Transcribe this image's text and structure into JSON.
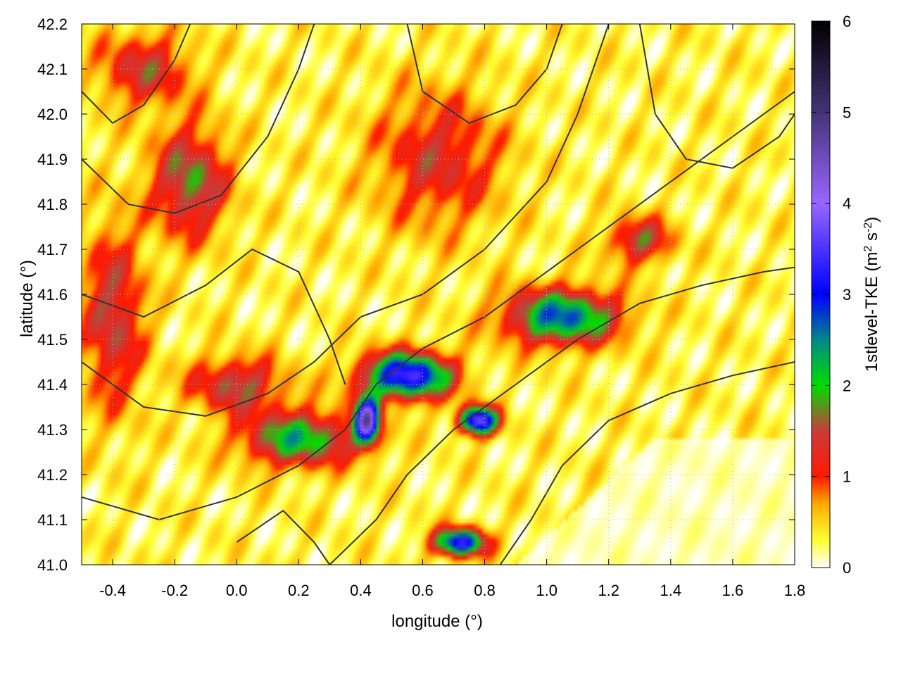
{
  "chart_data": {
    "type": "heatmap",
    "title": "",
    "xlabel": "longitude (°)",
    "ylabel": "latitude (°)",
    "colorbar_label_prefix": "1stlevel-TKE (m",
    "colorbar_label_sup1": "2",
    "colorbar_label_mid": " s",
    "colorbar_label_sup2": "-2",
    "colorbar_label_suffix": ")",
    "xlim": [
      -0.5,
      1.8
    ],
    "ylim": [
      41.0,
      42.2
    ],
    "x_ticks": [
      -0.4,
      -0.2,
      0.0,
      0.2,
      0.4,
      0.6,
      0.8,
      1.0,
      1.2,
      1.4,
      1.6,
      1.8
    ],
    "x_tick_labels": [
      "-0.4",
      "-0.2",
      "0.0",
      "0.2",
      "0.4",
      "0.6",
      "0.8",
      "1.0",
      "1.2",
      "1.4",
      "1.6",
      "1.8"
    ],
    "y_ticks": [
      41.0,
      41.1,
      41.2,
      41.3,
      41.4,
      41.5,
      41.6,
      41.7,
      41.8,
      41.9,
      42.0,
      42.1,
      42.2
    ],
    "y_tick_labels": [
      "41.0",
      "41.1",
      "41.2",
      "41.3",
      "41.4",
      "41.5",
      "41.6",
      "41.7",
      "41.8",
      "41.9",
      "42.0",
      "42.1",
      "42.2"
    ],
    "colorbar": {
      "range": [
        0,
        6
      ],
      "ticks": [
        0,
        1,
        2,
        3,
        4,
        5,
        6
      ],
      "tick_labels": [
        "0",
        "1",
        "2",
        "3",
        "4",
        "5",
        "6"
      ],
      "stops": [
        {
          "value": 0.0,
          "color": "#ffffff"
        },
        {
          "value": 0.3,
          "color": "#ffff33"
        },
        {
          "value": 0.7,
          "color": "#ffaa00"
        },
        {
          "value": 1.0,
          "color": "#ff1a00"
        },
        {
          "value": 1.5,
          "color": "#c83c3c"
        },
        {
          "value": 2.0,
          "color": "#00dd00"
        },
        {
          "value": 2.5,
          "color": "#008888"
        },
        {
          "value": 3.0,
          "color": "#0000ff"
        },
        {
          "value": 4.0,
          "color": "#9966ff"
        },
        {
          "value": 5.0,
          "color": "#443377"
        },
        {
          "value": 6.0,
          "color": "#000000"
        }
      ]
    },
    "grid": true,
    "approx_field_features": [
      {
        "lon": 0.55,
        "lat": 41.42,
        "tke": 3.2,
        "sx": 0.14,
        "sy": 0.05
      },
      {
        "lon": 1.05,
        "lat": 41.55,
        "tke": 2.4,
        "sx": 0.18,
        "sy": 0.06
      },
      {
        "lon": 0.2,
        "lat": 41.28,
        "tke": 1.9,
        "sx": 0.18,
        "sy": 0.06
      },
      {
        "lon": 0.42,
        "lat": 41.32,
        "tke": 4.0,
        "sx": 0.04,
        "sy": 0.05
      },
      {
        "lon": 0.78,
        "lat": 41.32,
        "tke": 3.5,
        "sx": 0.06,
        "sy": 0.03
      },
      {
        "lon": 0.72,
        "lat": 41.05,
        "tke": 3.0,
        "sx": 0.08,
        "sy": 0.03
      },
      {
        "lon": -0.15,
        "lat": 41.85,
        "tke": 1.5,
        "sx": 0.12,
        "sy": 0.12
      },
      {
        "lon": 0.0,
        "lat": 41.4,
        "tke": 1.3,
        "sx": 0.15,
        "sy": 0.06
      },
      {
        "lon": 1.3,
        "lat": 41.72,
        "tke": 1.3,
        "sx": 0.1,
        "sy": 0.05
      },
      {
        "lon": -0.4,
        "lat": 41.55,
        "tke": 1.2,
        "sx": 0.1,
        "sy": 0.2
      },
      {
        "lon": 0.65,
        "lat": 41.9,
        "tke": 1.0,
        "sx": 0.2,
        "sy": 0.15
      },
      {
        "lon": -0.3,
        "lat": 42.1,
        "tke": 1.1,
        "sx": 0.15,
        "sy": 0.08
      }
    ]
  }
}
